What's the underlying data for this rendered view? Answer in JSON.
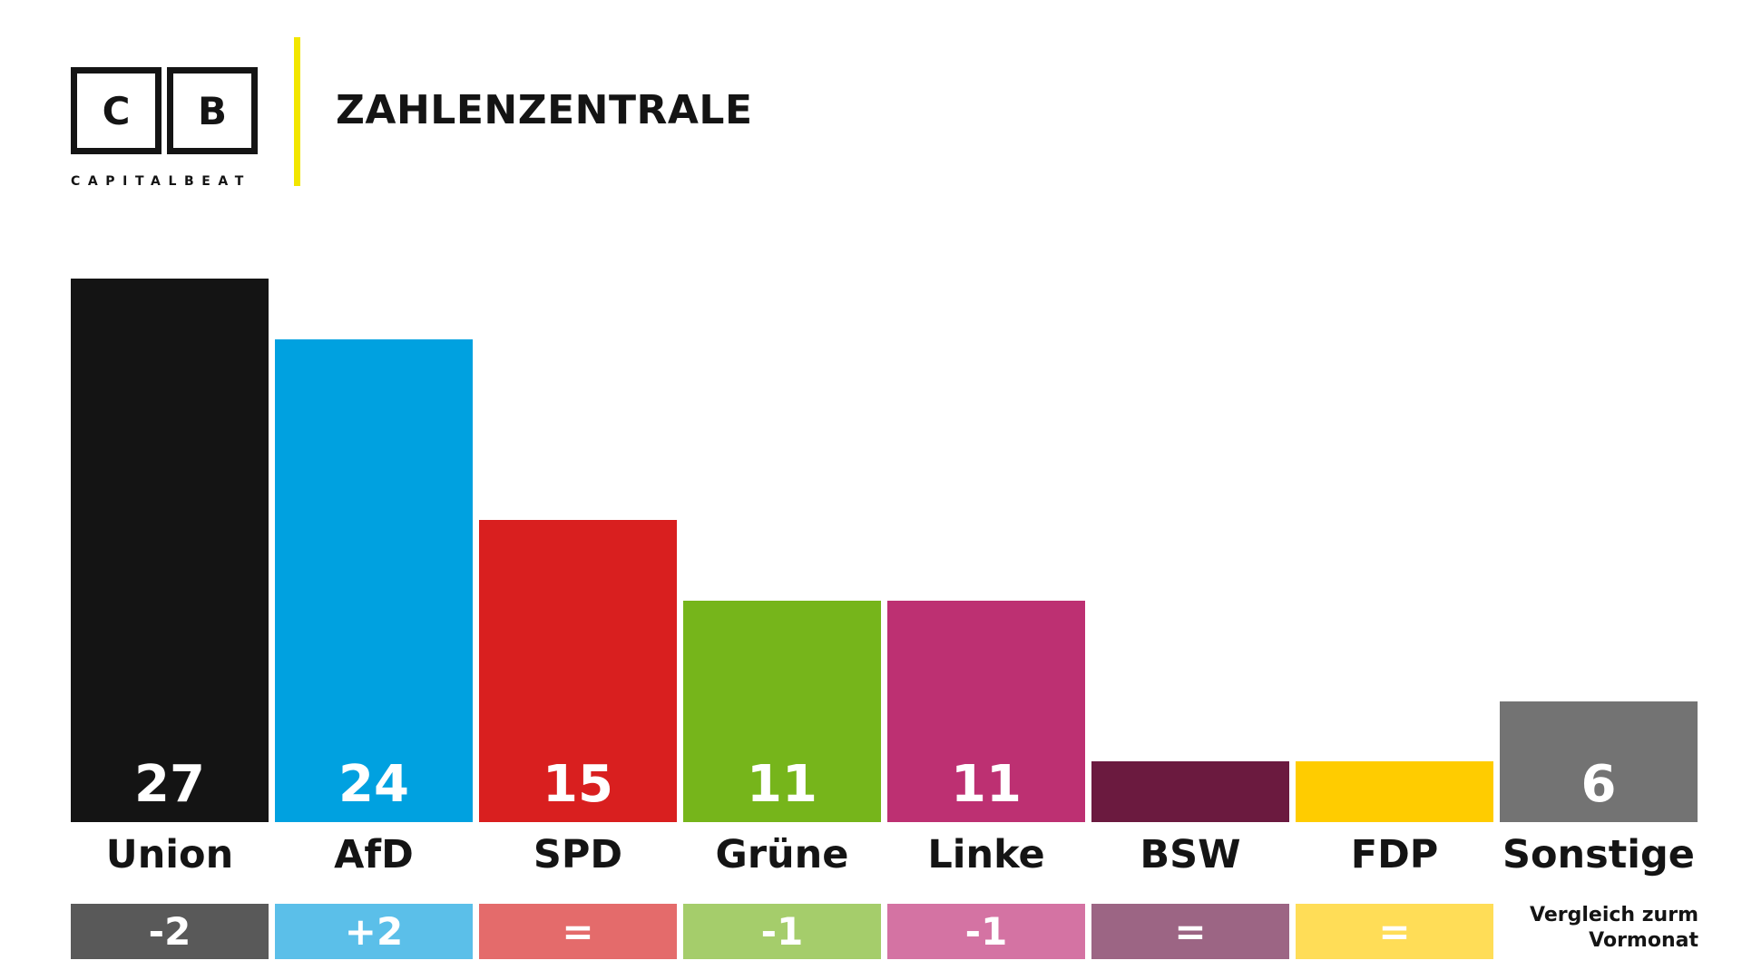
{
  "brand": {
    "logo_letters": [
      "C",
      "B"
    ],
    "logo_word": "CAPITALBEAT",
    "title": "ZAHLENZENTRALE",
    "accent_color": "#f2e600"
  },
  "chart_data": {
    "type": "bar",
    "categories": [
      "Union",
      "AfD",
      "SPD",
      "Grüne",
      "Linke",
      "BSW",
      "FDP",
      "Sonstige"
    ],
    "values": [
      27,
      24,
      15,
      11,
      11,
      3,
      3,
      6
    ],
    "value_labels": [
      "27",
      "24",
      "15",
      "11",
      "11",
      "",
      "",
      "6"
    ],
    "colors": [
      "#141414",
      "#00a1e0",
      "#d91f1f",
      "#76b51b",
      "#bd3072",
      "#6b1a3f",
      "#ffcc00",
      "#737373"
    ],
    "changes": [
      "-2",
      "+2",
      "=",
      "-1",
      "-1",
      "=",
      "=",
      null
    ],
    "change_colors": [
      "#595959",
      "#5bbfe9",
      "#e46b6b",
      "#a5cd6b",
      "#d473a3",
      "#9c6584",
      "#ffdd57",
      null
    ],
    "change_note": "Vergleich zurm Vormonat",
    "ylim": [
      0,
      27
    ],
    "title": "",
    "xlabel": "",
    "ylabel": ""
  }
}
